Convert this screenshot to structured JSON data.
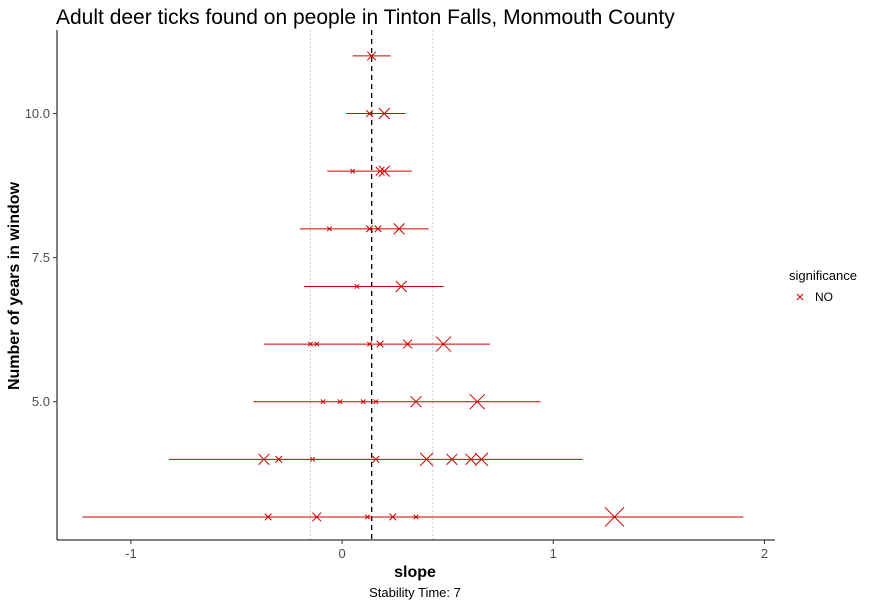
{
  "chart_data": {
    "type": "scatter",
    "title": "Adult deer ticks found on people in Tinton Falls, Monmouth County",
    "xlabel": "slope",
    "ylabel": "Number of years in window",
    "caption": "Stability Time: 7",
    "xlim": [
      -1.35,
      2.05
    ],
    "ylim": [
      2.6,
      11.45
    ],
    "x_ticks": [
      -1,
      0,
      1,
      2
    ],
    "x_tick_labels": [
      "-1",
      "0",
      "1",
      "2"
    ],
    "y_ticks": [
      5.0,
      7.5,
      10.0
    ],
    "y_tick_labels": [
      "5.0",
      "7.5",
      "10.0"
    ],
    "grid": false,
    "reference_lines": {
      "center": 0.14,
      "bounds": [
        -0.15,
        0.43
      ]
    },
    "legend": {
      "title": "significance",
      "placement": "right",
      "entries": [
        "NO"
      ]
    },
    "colors": {
      "series": "#cc0000",
      "reference": "#000000",
      "bounds": "#cccccc"
    },
    "ranges": [
      {
        "y": 11,
        "min": 0.05,
        "max": 0.23
      },
      {
        "y": 10,
        "min": 0.02,
        "max": 0.3
      },
      {
        "y": 9,
        "min": -0.07,
        "max": 0.33
      },
      {
        "y": 8,
        "min": -0.2,
        "max": 0.41
      },
      {
        "y": 7,
        "min": -0.18,
        "max": 0.48
      },
      {
        "y": 6,
        "min": -0.37,
        "max": 0.7
      },
      {
        "y": 5,
        "min": -0.42,
        "max": 0.94
      },
      {
        "y": 4,
        "min": -0.82,
        "max": 1.14
      },
      {
        "y": 3,
        "min": -1.23,
        "max": 1.9
      }
    ],
    "series": [
      {
        "name": "NO",
        "points": [
          {
            "x": 0.14,
            "y": 11,
            "size": 3
          },
          {
            "x": 0.13,
            "y": 10,
            "size": 2
          },
          {
            "x": 0.2,
            "y": 10,
            "size": 4
          },
          {
            "x": 0.05,
            "y": 9,
            "size": 1
          },
          {
            "x": 0.18,
            "y": 9,
            "size": 3
          },
          {
            "x": 0.2,
            "y": 9,
            "size": 4
          },
          {
            "x": -0.06,
            "y": 8,
            "size": 1
          },
          {
            "x": 0.13,
            "y": 8,
            "size": 2
          },
          {
            "x": 0.17,
            "y": 8,
            "size": 2
          },
          {
            "x": 0.27,
            "y": 8,
            "size": 4
          },
          {
            "x": 0.07,
            "y": 7,
            "size": 1
          },
          {
            "x": 0.28,
            "y": 7,
            "size": 4
          },
          {
            "x": -0.15,
            "y": 6,
            "size": 1
          },
          {
            "x": -0.12,
            "y": 6,
            "size": 1
          },
          {
            "x": 0.13,
            "y": 6,
            "size": 1
          },
          {
            "x": 0.18,
            "y": 6,
            "size": 2
          },
          {
            "x": 0.31,
            "y": 6,
            "size": 3
          },
          {
            "x": 0.48,
            "y": 6,
            "size": 6
          },
          {
            "x": -0.09,
            "y": 5,
            "size": 1
          },
          {
            "x": -0.01,
            "y": 5,
            "size": 1
          },
          {
            "x": 0.1,
            "y": 5,
            "size": 1
          },
          {
            "x": 0.16,
            "y": 5,
            "size": 1
          },
          {
            "x": 0.35,
            "y": 5,
            "size": 4
          },
          {
            "x": 0.64,
            "y": 5,
            "size": 6
          },
          {
            "x": -0.37,
            "y": 4,
            "size": 4
          },
          {
            "x": -0.3,
            "y": 4,
            "size": 2
          },
          {
            "x": -0.14,
            "y": 4,
            "size": 1
          },
          {
            "x": 0.16,
            "y": 4,
            "size": 2
          },
          {
            "x": 0.4,
            "y": 4,
            "size": 5
          },
          {
            "x": 0.52,
            "y": 4,
            "size": 4
          },
          {
            "x": 0.61,
            "y": 4,
            "size": 4
          },
          {
            "x": 0.66,
            "y": 4,
            "size": 5
          },
          {
            "x": -0.35,
            "y": 3,
            "size": 2
          },
          {
            "x": -0.12,
            "y": 3,
            "size": 3
          },
          {
            "x": 0.12,
            "y": 3,
            "size": 1
          },
          {
            "x": 0.24,
            "y": 3,
            "size": 2
          },
          {
            "x": 0.35,
            "y": 3,
            "size": 1
          },
          {
            "x": 1.29,
            "y": 3,
            "size": 8
          }
        ]
      }
    ]
  }
}
